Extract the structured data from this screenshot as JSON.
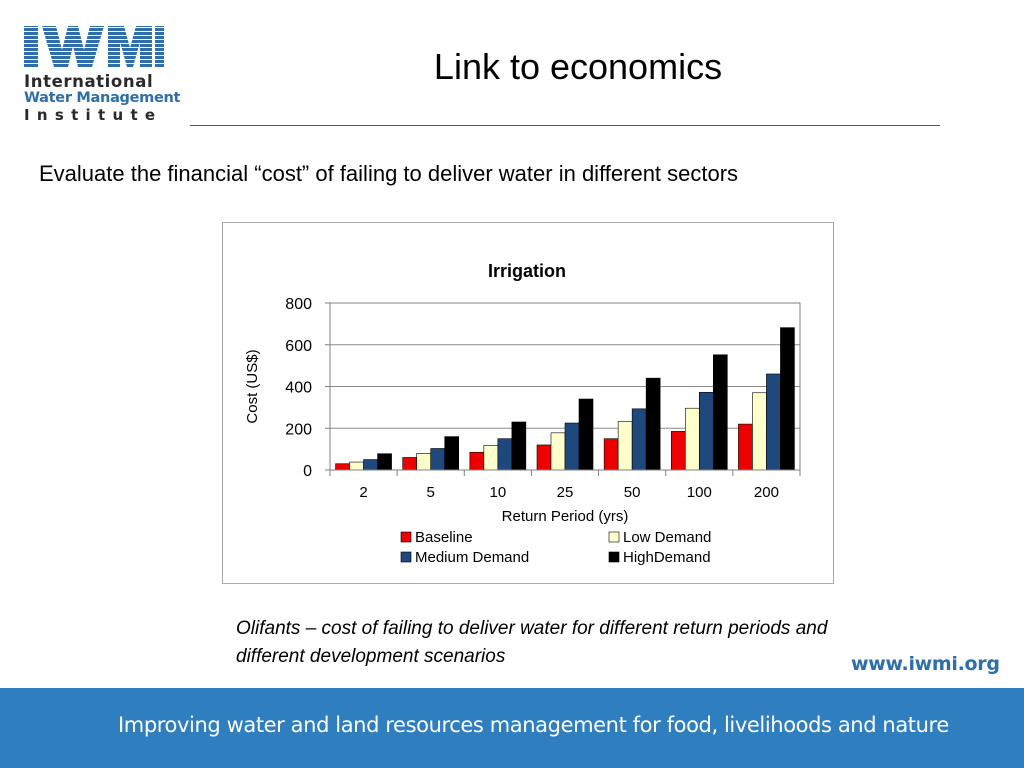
{
  "logo": {
    "mark": "IWMI",
    "line1": "International",
    "line2": "Water Management",
    "line3": "Institute",
    "colors": {
      "blue": "#2f6ea8",
      "dark": "#2a2a2a"
    }
  },
  "slide": {
    "title": "Link to economics",
    "subtitle": "Evaluate the financial “cost” of failing to deliver water in different sectors",
    "caption": "Olifants – cost of failing to deliver water for different return periods and different development scenarios",
    "website": "www.iwmi.org",
    "footer": "Improving water and land resources management for food, livelihoods and nature"
  },
  "colors": {
    "footer_bar": "#2f7fc0",
    "baseline": "#ee0000",
    "low_demand": "#ffffcc",
    "medium_demand": "#1f497d",
    "high_demand": "#000000"
  },
  "chart_data": {
    "type": "bar",
    "title": "Irrigation",
    "xlabel": "Return Period (yrs)",
    "ylabel": "Cost (US$)",
    "ylim": [
      0,
      800
    ],
    "yticks": [
      "0",
      "200",
      "400",
      "600",
      "800"
    ],
    "categories": [
      "2",
      "5",
      "10",
      "25",
      "50",
      "100",
      "200"
    ],
    "series": [
      {
        "name": "Baseline",
        "color": "#ee0000",
        "values": [
          30,
          60,
          85,
          120,
          150,
          185,
          220
        ]
      },
      {
        "name": "Low Demand",
        "color": "#ffffcc",
        "values": [
          38,
          80,
          118,
          178,
          232,
          296,
          370
        ]
      },
      {
        "name": "Medium Demand",
        "color": "#1f497d",
        "values": [
          50,
          103,
          150,
          225,
          293,
          372,
          460
        ]
      },
      {
        "name": "HighDemand",
        "color": "#000000",
        "values": [
          78,
          160,
          230,
          340,
          440,
          552,
          682
        ]
      }
    ],
    "grid": true,
    "legend": "bottom"
  }
}
